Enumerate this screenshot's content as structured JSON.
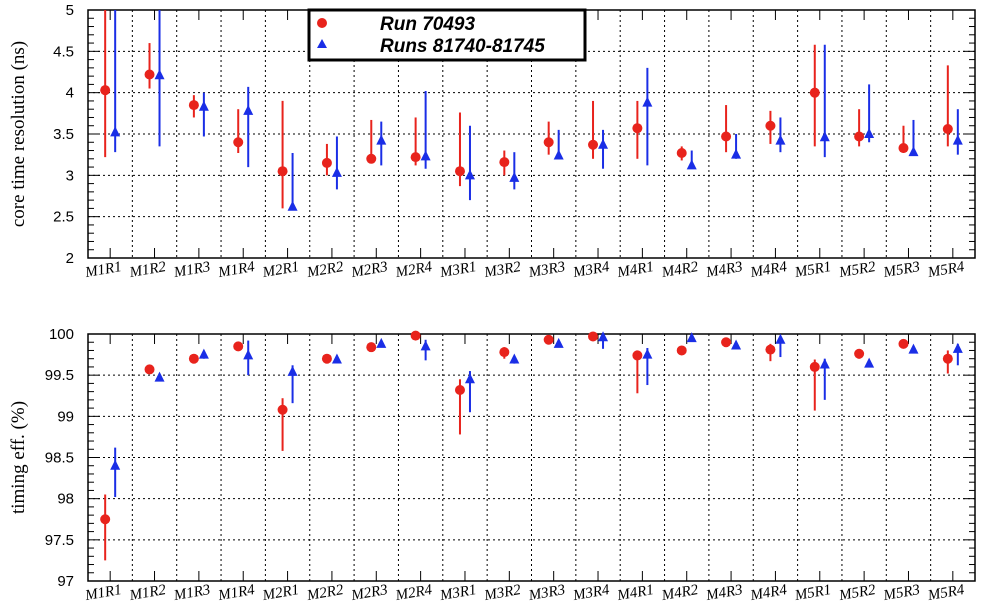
{
  "legend": [
    {
      "label": "Run 70493",
      "marker": "circle",
      "color": "#e8231c"
    },
    {
      "label": "Runs 81740-81745",
      "marker": "triangle",
      "color": "#1a2ee6"
    }
  ],
  "chart_data": [
    {
      "type": "scatter",
      "ylabel": "core time resolution (ns)",
      "ylim": [
        2,
        5
      ],
      "yticks": [
        "2",
        "2.5",
        "3",
        "3.5",
        "4",
        "4.5",
        "5"
      ],
      "grid": true,
      "categories": [
        "M1R1",
        "M1R2",
        "M1R3",
        "M1R4",
        "M2R1",
        "M2R2",
        "M2R3",
        "M2R4",
        "M3R1",
        "M3R2",
        "M3R3",
        "M3R4",
        "M4R1",
        "M4R2",
        "M4R3",
        "M4R4",
        "M5R1",
        "M5R2",
        "M5R3",
        "M5R4"
      ],
      "series": [
        {
          "name": "Run 70493",
          "color": "#e8231c",
          "marker": "circle",
          "values": [
            4.03,
            4.22,
            3.85,
            3.4,
            3.05,
            3.15,
            3.2,
            3.22,
            3.05,
            3.16,
            3.4,
            3.37,
            3.57,
            3.27,
            3.47,
            3.6,
            4.0,
            3.47,
            3.33,
            3.56
          ],
          "err_low": [
            3.22,
            4.05,
            3.7,
            3.27,
            2.6,
            3.0,
            3.17,
            3.12,
            2.87,
            3.0,
            3.25,
            3.2,
            3.2,
            3.18,
            3.28,
            3.38,
            3.35,
            3.35,
            3.27,
            3.35
          ],
          "err_high": [
            5.0,
            4.6,
            3.97,
            3.8,
            3.9,
            3.38,
            3.67,
            3.7,
            3.76,
            3.3,
            3.65,
            3.9,
            3.9,
            3.35,
            3.85,
            3.78,
            4.58,
            3.8,
            3.6,
            4.33
          ]
        },
        {
          "name": "Runs 81740-81745",
          "color": "#1a2ee6",
          "marker": "triangle",
          "values": [
            3.52,
            4.21,
            3.83,
            3.78,
            2.62,
            3.03,
            3.42,
            3.23,
            3.0,
            2.97,
            3.24,
            3.37,
            3.88,
            3.12,
            3.25,
            3.42,
            3.46,
            3.5,
            3.28,
            3.42
          ],
          "err_low": [
            3.28,
            3.35,
            3.47,
            3.1,
            2.58,
            2.83,
            3.12,
            3.08,
            2.7,
            2.83,
            3.22,
            3.08,
            3.12,
            3.08,
            3.2,
            3.28,
            3.22,
            3.4,
            3.25,
            3.25
          ],
          "err_high": [
            5.0,
            5.0,
            4.0,
            4.07,
            3.27,
            3.47,
            3.65,
            4.02,
            3.6,
            3.28,
            3.55,
            3.55,
            4.3,
            3.3,
            3.5,
            3.7,
            4.58,
            4.1,
            3.67,
            3.8
          ]
        }
      ]
    },
    {
      "type": "scatter",
      "ylabel": "timing eff. (%)",
      "ylim": [
        97,
        100
      ],
      "yticks": [
        "97",
        "97.5",
        "98",
        "98.5",
        "99",
        "99.5",
        "100"
      ],
      "grid": true,
      "categories": [
        "M1R1",
        "M1R2",
        "M1R3",
        "M1R4",
        "M2R1",
        "M2R2",
        "M2R3",
        "M2R4",
        "M3R1",
        "M3R2",
        "M3R3",
        "M3R4",
        "M4R1",
        "M4R2",
        "M4R3",
        "M4R4",
        "M5R1",
        "M5R2",
        "M5R3",
        "M5R4"
      ],
      "series": [
        {
          "name": "Run 70493",
          "color": "#e8231c",
          "marker": "circle",
          "values": [
            97.75,
            99.57,
            99.7,
            99.85,
            99.08,
            99.7,
            99.84,
            99.98,
            99.32,
            99.78,
            99.93,
            99.97,
            99.74,
            99.8,
            99.9,
            99.81,
            99.6,
            99.76,
            99.88,
            99.7
          ],
          "err_low": [
            97.25,
            99.52,
            99.66,
            99.8,
            98.58,
            99.66,
            99.8,
            99.95,
            98.78,
            99.7,
            99.9,
            99.94,
            99.28,
            99.75,
            99.87,
            99.67,
            99.07,
            99.7,
            99.85,
            99.52
          ],
          "err_high": [
            98.05,
            99.6,
            99.74,
            99.89,
            99.22,
            99.74,
            99.88,
            100.0,
            99.45,
            99.84,
            99.96,
            100.0,
            99.8,
            99.85,
            99.93,
            99.88,
            99.69,
            99.8,
            99.91,
            99.8
          ]
        },
        {
          "name": "Runs 81740-81745",
          "color": "#1a2ee6",
          "marker": "triangle",
          "values": [
            98.4,
            99.47,
            99.75,
            99.74,
            99.54,
            99.69,
            99.88,
            99.85,
            99.45,
            99.69,
            99.88,
            99.96,
            99.75,
            99.95,
            99.86,
            99.93,
            99.63,
            99.64,
            99.81,
            99.82
          ],
          "err_low": [
            98.02,
            99.44,
            99.7,
            99.5,
            99.16,
            99.65,
            99.85,
            99.68,
            99.05,
            99.64,
            99.85,
            99.82,
            99.38,
            99.92,
            99.83,
            99.72,
            99.2,
            99.6,
            99.78,
            99.62
          ],
          "err_high": [
            98.62,
            99.52,
            99.78,
            99.92,
            99.62,
            99.74,
            99.92,
            99.93,
            99.55,
            99.73,
            99.91,
            100.0,
            99.83,
            99.98,
            99.9,
            99.96,
            99.7,
            99.68,
            99.85,
            99.88
          ]
        }
      ]
    }
  ]
}
